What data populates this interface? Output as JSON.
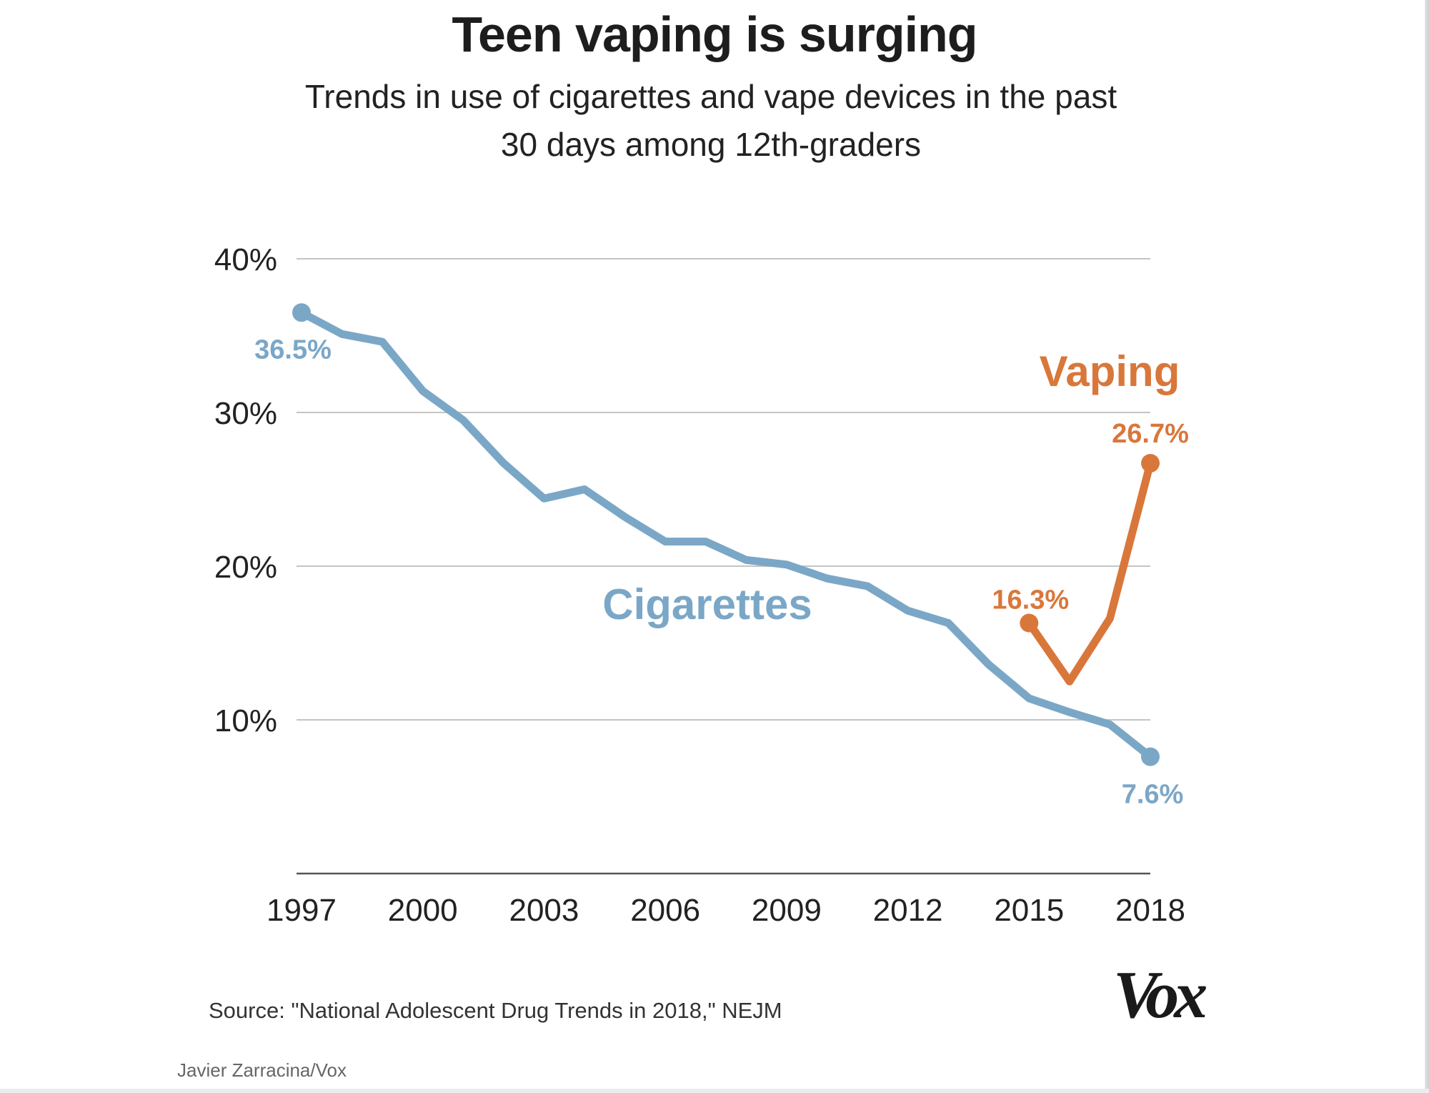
{
  "chart_data": {
    "type": "line",
    "title": "Teen vaping is surging",
    "subtitle": "Trends in use of cigarettes and vape devices in the past 30 days among 12th-graders",
    "xlabel": "",
    "ylabel": "",
    "xlim": [
      1997,
      2018
    ],
    "ylim": [
      0,
      40
    ],
    "x_ticks": [
      "1997",
      "2000",
      "2003",
      "2006",
      "2009",
      "2012",
      "2015",
      "2018"
    ],
    "y_ticks": [
      "10%",
      "20%",
      "30%",
      "40%"
    ],
    "grid": true,
    "series": [
      {
        "name": "Cigarettes",
        "color": "#7ba7c7",
        "x": [
          1997,
          1998,
          1999,
          2000,
          2001,
          2002,
          2003,
          2004,
          2005,
          2006,
          2007,
          2008,
          2009,
          2010,
          2011,
          2012,
          2013,
          2014,
          2015,
          2016,
          2017,
          2018
        ],
        "values": [
          36.5,
          35.1,
          34.6,
          31.4,
          29.5,
          26.7,
          24.4,
          25.0,
          23.2,
          21.6,
          21.6,
          20.4,
          20.1,
          19.2,
          18.7,
          17.1,
          16.3,
          13.6,
          11.4,
          10.5,
          9.7,
          7.6
        ]
      },
      {
        "name": "Vaping",
        "color": "#d9773b",
        "x": [
          2015,
          2016,
          2017,
          2018
        ],
        "values": [
          16.3,
          12.5,
          16.6,
          26.7
        ]
      }
    ],
    "annotations": [
      {
        "text": "36.5%",
        "series": "Cigarettes",
        "x": 1997
      },
      {
        "text": "7.6%",
        "series": "Cigarettes",
        "x": 2018
      },
      {
        "text": "16.3%",
        "series": "Vaping",
        "x": 2015
      },
      {
        "text": "26.7%",
        "series": "Vaping",
        "x": 2018
      }
    ]
  },
  "source": "Source: \"National Adolescent Drug Trends in 2018,\" NEJM",
  "credit": "Javier Zarracina/Vox",
  "logo": "Vox"
}
